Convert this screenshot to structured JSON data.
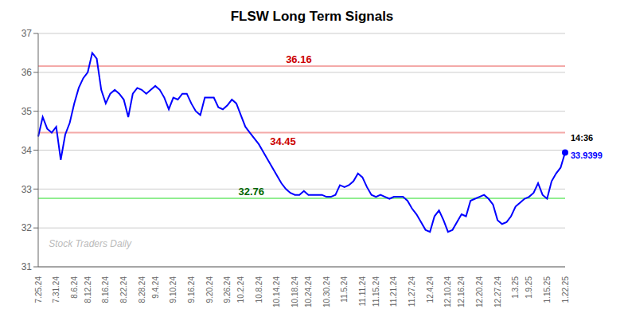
{
  "chart_data": {
    "type": "line",
    "title": "FLSW Long Term Signals",
    "color": "blue",
    "ylim": [
      31,
      37
    ],
    "yticks": [
      31,
      32,
      33,
      34,
      35,
      36,
      37
    ],
    "grid": true,
    "categories": [
      "7.25.24",
      null,
      null,
      null,
      "7.31.24",
      null,
      null,
      null,
      "8.6.24",
      null,
      null,
      "8.12.24",
      null,
      null,
      null,
      "8.16.24",
      null,
      null,
      null,
      "8.22.24",
      null,
      null,
      null,
      "8.28.24",
      null,
      null,
      "9.4.24",
      null,
      null,
      null,
      "9.10.24",
      null,
      null,
      null,
      "9.16.24",
      null,
      null,
      null,
      "9.20.24",
      null,
      null,
      null,
      "9.26.24",
      null,
      null,
      "10.2.24",
      null,
      null,
      null,
      "10.8.24",
      null,
      null,
      null,
      "10.14.24",
      null,
      null,
      null,
      "10.18.24",
      null,
      null,
      "10.24.24",
      null,
      null,
      null,
      "10.30.24",
      null,
      null,
      null,
      "11.5.24",
      null,
      null,
      null,
      "11.11.24",
      null,
      null,
      "11.15.24",
      null,
      null,
      null,
      "11.21.24",
      null,
      null,
      null,
      "11.27.24",
      null,
      null,
      null,
      "12.4.24",
      null,
      null,
      null,
      "12.10.24",
      null,
      null,
      "12.16.24",
      null,
      null,
      null,
      "12.20.24",
      null,
      null,
      null,
      "12.27.24",
      null,
      null,
      null,
      "1.3.25",
      null,
      null,
      "1.9.25",
      null,
      null,
      null,
      "1.15.25",
      null,
      null,
      null,
      "1.22.25"
    ],
    "values": [
      34.35,
      34.85,
      34.55,
      34.45,
      34.6,
      33.75,
      34.4,
      34.7,
      35.2,
      35.6,
      35.85,
      36.0,
      36.5,
      36.35,
      35.55,
      35.2,
      35.45,
      35.55,
      35.45,
      35.3,
      34.85,
      35.45,
      35.6,
      35.55,
      35.45,
      35.55,
      35.65,
      35.55,
      35.35,
      35.05,
      35.35,
      35.3,
      35.45,
      35.45,
      35.2,
      35.0,
      34.9,
      35.35,
      35.35,
      35.35,
      35.1,
      35.05,
      35.15,
      35.3,
      35.2,
      34.9,
      34.6,
      34.45,
      34.3,
      34.15,
      33.95,
      33.75,
      33.55,
      33.35,
      33.15,
      33.0,
      32.9,
      32.85,
      32.85,
      32.95,
      32.85,
      32.85,
      32.85,
      32.85,
      32.8,
      32.8,
      32.85,
      33.1,
      33.05,
      33.1,
      33.2,
      33.4,
      33.3,
      33.05,
      32.85,
      32.8,
      32.85,
      32.8,
      32.75,
      32.8,
      32.8,
      32.8,
      32.7,
      32.5,
      32.35,
      32.15,
      31.95,
      31.9,
      32.3,
      32.45,
      32.2,
      31.9,
      31.95,
      32.15,
      32.35,
      32.3,
      32.7,
      32.75,
      32.8,
      32.85,
      32.75,
      32.6,
      32.2,
      32.1,
      32.15,
      32.3,
      32.55,
      32.65,
      32.75,
      32.8,
      32.9,
      33.15,
      32.85,
      32.75,
      33.2,
      33.4,
      33.55,
      33.9399
    ],
    "hlines": [
      {
        "y": 36.16,
        "color": "#f4a9a8",
        "label": "36.16",
        "label_color": "#cc0000"
      },
      {
        "y": 34.45,
        "color": "#f4a9a8",
        "label": "34.45",
        "label_color": "#cc0000"
      },
      {
        "y": 32.76,
        "color": "#90ee90",
        "label": "32.76",
        "label_color": "#006600"
      }
    ],
    "annotations": [
      {
        "text": "14:36",
        "color": "black"
      },
      {
        "text": "33.9399",
        "color": "blue"
      }
    ],
    "watermark": {
      "text": "Stock Traders Daily",
      "color": "#bbbbbb"
    }
  }
}
